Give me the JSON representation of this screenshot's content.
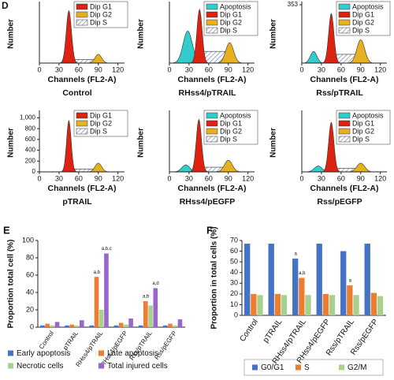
{
  "chart_data": [
    {
      "type": "flow",
      "panel_label": "D",
      "title": "Control",
      "xlabel": "Channels (FL2-A)",
      "ylabel": "Number",
      "xlim": [
        0,
        130
      ],
      "xticks": [
        0,
        30,
        60,
        90,
        120
      ],
      "components": [
        {
          "name": "Dip G1",
          "color": "#dd2211"
        },
        {
          "name": "Dip G2",
          "color": "#e6b020"
        },
        {
          "name": "Dip S",
          "color": "hatch"
        }
      ]
    },
    {
      "type": "flow",
      "title": "RHss4/pTRAIL",
      "xlabel": "Channels (FL2-A)",
      "ylabel": "Number",
      "xlim": [
        0,
        130
      ],
      "xticks": [
        0,
        30,
        60,
        90,
        120
      ],
      "components": [
        {
          "name": "Apoptosis",
          "color": "#33cccc"
        },
        {
          "name": "Dip G1",
          "color": "#dd2211"
        },
        {
          "name": "Dip G2",
          "color": "#e6b020"
        },
        {
          "name": "Dip S",
          "color": "hatch"
        }
      ]
    },
    {
      "type": "flow",
      "title": "Rss/pTRAIL",
      "xlabel": "Channels (FL2-A)",
      "ylabel": "Number",
      "xlim": [
        0,
        130
      ],
      "xticks": [
        0,
        30,
        60,
        90,
        120
      ],
      "ylim": [
        0,
        353
      ],
      "yticks": [
        353
      ],
      "components": [
        {
          "name": "Apoptosis",
          "color": "#33cccc"
        },
        {
          "name": "Dip G1",
          "color": "#dd2211"
        },
        {
          "name": "Dip G2",
          "color": "#e6b020"
        },
        {
          "name": "Dip S",
          "color": "hatch"
        }
      ]
    },
    {
      "type": "flow",
      "title": "pTRAIL",
      "xlabel": "Channels (FL2-A)",
      "ylabel": "Number",
      "xlim": [
        0,
        130
      ],
      "xticks": [
        0,
        30,
        60,
        90,
        120
      ],
      "ylim": [
        0,
        1080
      ],
      "yticks": [
        0,
        200,
        400,
        600,
        800,
        {
          "value": 1000,
          "label": "1,000"
        }
      ],
      "components": [
        {
          "name": "Dip G1",
          "color": "#dd2211"
        },
        {
          "name": "Dip G2",
          "color": "#e6b020"
        },
        {
          "name": "Dip S",
          "color": "hatch"
        }
      ]
    },
    {
      "type": "flow",
      "title": "RHss4/pEGFP",
      "xlabel": "Channels (FL2-A)",
      "ylabel": "Number",
      "xlim": [
        0,
        130
      ],
      "xticks": [
        0,
        30,
        60,
        90,
        120
      ],
      "components": [
        {
          "name": "Apoptosis",
          "color": "#33cccc"
        },
        {
          "name": "Dip G1",
          "color": "#dd2211"
        },
        {
          "name": "Dip G2",
          "color": "#e6b020"
        },
        {
          "name": "Dip S",
          "color": "hatch"
        }
      ]
    },
    {
      "type": "flow",
      "title": "Rss/pEGFP",
      "xlabel": "Channels (FL2-A)",
      "ylabel": "Number",
      "xlim": [
        0,
        130
      ],
      "xticks": [
        0,
        30,
        60,
        90,
        120
      ],
      "components": [
        {
          "name": "Apoptosis",
          "color": "#33cccc"
        },
        {
          "name": "Dip G1",
          "color": "#dd2211"
        },
        {
          "name": "Dip G2",
          "color": "#e6b020"
        },
        {
          "name": "Dip S",
          "color": "hatch"
        }
      ]
    },
    {
      "type": "bar",
      "panel_label": "E",
      "ylabel": "Proportion total cell (%)",
      "ylim": [
        0,
        100
      ],
      "yticks": [
        0,
        20,
        40,
        60,
        80,
        100
      ],
      "categories": [
        "Control",
        "pTRAIL",
        "RHss4/pTRAIL",
        "RHss4/pEGFP",
        "Rss/pTRAIL",
        "Rss/pEGFP"
      ],
      "series": [
        {
          "name": "Early apoptosis",
          "color": "#4472c4",
          "values": [
            2,
            2,
            2,
            2,
            2,
            2
          ]
        },
        {
          "name": "Late apoptosis",
          "color": "#ed7d31",
          "values": [
            4,
            3,
            58,
            5,
            30,
            4
          ]
        },
        {
          "name": "Necrotic cells",
          "color": "#a9d18e",
          "values": [
            2,
            2,
            20,
            3,
            25,
            2
          ]
        },
        {
          "name": "Total injured cells",
          "color": "#9966cc",
          "values": [
            6,
            8,
            85,
            10,
            45,
            9
          ]
        }
      ],
      "annotations": [
        {
          "text": "a,b",
          "category": "RHss4/pTRAIL",
          "series": "Late apoptosis"
        },
        {
          "text": "a,b,c",
          "category": "RHss4/pTRAIL",
          "series": "Total injured cells"
        },
        {
          "text": "a,b",
          "category": "Rss/pTRAIL",
          "series": "Late apoptosis"
        },
        {
          "text": "a,d",
          "category": "Rss/pTRAIL",
          "series": "Total injured cells"
        }
      ]
    },
    {
      "type": "bar",
      "panel_label": "F",
      "ylabel": "Proportion in total cells (%)",
      "ylim": [
        0,
        70
      ],
      "yticks": [
        0,
        10,
        20,
        30,
        40,
        50,
        60,
        70
      ],
      "categories": [
        "Control",
        "pTRAIL",
        "RHss4/pTRAIL",
        "RHss4/pEGFP",
        "Rss/pTRAIL",
        "Rss/pEGFP"
      ],
      "series": [
        {
          "name": "G0/G1",
          "color": "#4472c4",
          "values": [
            67,
            67,
            53,
            67,
            60,
            67
          ]
        },
        {
          "name": "S",
          "color": "#ed7d31",
          "values": [
            20,
            20,
            35,
            20,
            28,
            21
          ]
        },
        {
          "name": "G2/M",
          "color": "#a9d18e",
          "values": [
            19,
            19,
            19,
            19,
            19,
            18
          ]
        }
      ],
      "annotations": [
        {
          "text": "a",
          "category": "RHss4/pTRAIL",
          "series": "G0/G1"
        },
        {
          "text": "a,b",
          "category": "RHss4/pTRAIL",
          "series": "S"
        },
        {
          "text": "a",
          "category": "Rss/pTRAIL",
          "series": "S"
        }
      ]
    }
  ]
}
